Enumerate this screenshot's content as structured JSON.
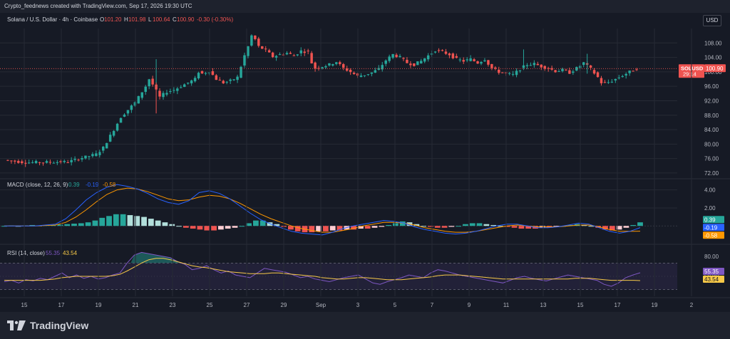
{
  "header": {
    "attribution": "Crypto_feednews created with TradingView.com, Sep 17, 2026 19:30 UTC"
  },
  "currency_button": "USD",
  "footer": {
    "brand": "TradingView"
  },
  "chart_data": [
    {
      "type": "candlestick",
      "title": "Solana / U.S. Dollar · 4h · Coinbase",
      "ohlc_readout": {
        "o_label": "O",
        "o": "101.20",
        "h_label": "H",
        "h": "101.98",
        "l_label": "L",
        "l": "100.64",
        "c_label": "C",
        "c": "100.90",
        "change": "-0.30 (-0.30%)"
      },
      "symbol_label": "SOLUSD",
      "last_price": "100.90",
      "countdown": "29:14",
      "y_ticks": [
        "108.00",
        "104.00",
        "100.00",
        "96.00",
        "92.00",
        "88.00",
        "84.00",
        "80.00",
        "76.00",
        "72.00"
      ],
      "ylim": [
        71,
        112
      ],
      "x_ticks": [
        "15",
        "17",
        "19",
        "21",
        "23",
        "25",
        "27",
        "29",
        "Sep",
        "3",
        "5",
        "7",
        "9",
        "11",
        "13",
        "15",
        "17",
        "19",
        "2"
      ],
      "close_path": [
        [
          0,
          75.6
        ],
        [
          6,
          74.9
        ],
        [
          12,
          75.0
        ],
        [
          18,
          75.1
        ],
        [
          22,
          76.2
        ],
        [
          26,
          77.2
        ],
        [
          28,
          79.0
        ],
        [
          31,
          84.0
        ],
        [
          33,
          87.5
        ],
        [
          35,
          89.5
        ],
        [
          37,
          91.5
        ],
        [
          39,
          94.5
        ],
        [
          40,
          96.0
        ],
        [
          41,
          98.0
        ],
        [
          42,
          96.5
        ],
        [
          44,
          93.0
        ],
        [
          46,
          94.5
        ],
        [
          48,
          95.0
        ],
        [
          50,
          96.0
        ],
        [
          52,
          97.0
        ],
        [
          54,
          98.0
        ],
        [
          55,
          100.0
        ],
        [
          56,
          99.5
        ],
        [
          58,
          100.2
        ],
        [
          60,
          98.0
        ],
        [
          62,
          97.0
        ],
        [
          64,
          97.5
        ],
        [
          66,
          98.5
        ],
        [
          67,
          101.5
        ],
        [
          68,
          104.5
        ],
        [
          69,
          107.0
        ],
        [
          70,
          110.0
        ],
        [
          71,
          109.0
        ],
        [
          72,
          107.0
        ],
        [
          74,
          106.0
        ],
        [
          76,
          104.2
        ],
        [
          78,
          104.8
        ],
        [
          80,
          105.2
        ],
        [
          82,
          104.5
        ],
        [
          84,
          105.8
        ],
        [
          86,
          105.5
        ],
        [
          87,
          102.5
        ],
        [
          88,
          101.0
        ],
        [
          90,
          101.5
        ],
        [
          92,
          102.0
        ],
        [
          94,
          102.8
        ],
        [
          96,
          101.0
        ],
        [
          98,
          100.0
        ],
        [
          100,
          98.8
        ],
        [
          102,
          99.2
        ],
        [
          104,
          99.8
        ],
        [
          106,
          100.8
        ],
        [
          108,
          103.2
        ],
        [
          110,
          104.8
        ],
        [
          112,
          104.0
        ],
        [
          114,
          102.5
        ],
        [
          116,
          102.0
        ],
        [
          118,
          103.0
        ],
        [
          120,
          104.5
        ],
        [
          122,
          106.0
        ],
        [
          124,
          105.5
        ],
        [
          126,
          104.8
        ],
        [
          128,
          103.5
        ],
        [
          130,
          103.0
        ],
        [
          132,
          103.5
        ],
        [
          134,
          102.5
        ],
        [
          136,
          103.5
        ],
        [
          138,
          101.0
        ],
        [
          140,
          100.0
        ],
        [
          142,
          99.5
        ],
        [
          144,
          99.2
        ],
        [
          146,
          100.8
        ],
        [
          148,
          102.0
        ],
        [
          150,
          102.2
        ],
        [
          152,
          101.5
        ],
        [
          154,
          101.0
        ],
        [
          156,
          100.2
        ],
        [
          158,
          100.5
        ],
        [
          160,
          99.8
        ],
        [
          162,
          101.0
        ],
        [
          164,
          102.5
        ],
        [
          166,
          100.8
        ],
        [
          168,
          98.5
        ],
        [
          169,
          97.0
        ],
        [
          170,
          96.8
        ],
        [
          172,
          97.5
        ],
        [
          174,
          98.5
        ],
        [
          176,
          99.5
        ],
        [
          178,
          100.5
        ],
        [
          179,
          100.9
        ]
      ],
      "wicks": [
        [
          43,
          95.5,
          103.5
        ],
        [
          43,
          88.5,
          97.0
        ],
        [
          147,
          100.5,
          106.2
        ],
        [
          165,
          99.5,
          105.0
        ]
      ]
    },
    {
      "type": "line",
      "title": "MACD (close, 12, 26, 9)",
      "values_readout": [
        "0.39",
        "-0.19",
        "-0.58"
      ],
      "y_ticks": [
        "4.00",
        "2.00"
      ],
      "ylim": [
        -1.8,
        5.0
      ],
      "badges": [
        "0.39",
        "-0.19",
        "-0.58"
      ],
      "histogram": [
        0.0,
        0.05,
        0.0,
        0.05,
        0.1,
        0.05,
        0.1,
        0.1,
        0.15,
        0.2,
        0.25,
        0.3,
        0.4,
        0.6,
        0.9,
        1.1,
        1.3,
        1.3,
        1.2,
        1.1,
        1.0,
        0.8,
        0.6,
        0.4,
        0.2,
        0.0,
        -0.2,
        -0.3,
        -0.4,
        -0.5,
        -0.5,
        -0.4,
        -0.3,
        -0.2,
        0.0,
        0.3,
        0.6,
        0.6,
        0.4,
        0.2,
        -0.1,
        -0.4,
        -0.6,
        -0.7,
        -0.7,
        -0.6,
        -0.6,
        -0.5,
        -0.5,
        -0.4,
        -0.4,
        -0.3,
        -0.3,
        -0.2,
        -0.1,
        0.1,
        0.3,
        0.5,
        0.4,
        0.2,
        0.0,
        -0.1,
        -0.2,
        -0.2,
        -0.1,
        0.0,
        0.2,
        0.3,
        0.3,
        0.2,
        0.1,
        0.0,
        -0.1,
        -0.2,
        -0.3,
        -0.3,
        -0.3,
        -0.2,
        -0.2,
        -0.1,
        0.0,
        0.1,
        0.2,
        0.1,
        0.0,
        -0.2,
        -0.4,
        -0.5,
        -0.4,
        -0.2,
        0.1,
        0.4
      ],
      "macd_line": [
        0.0,
        0.0,
        0.0,
        0.0,
        0.1,
        0.2,
        0.8,
        1.8,
        2.9,
        3.7,
        4.3,
        4.6,
        4.4,
        4.1,
        3.6,
        3.0,
        2.6,
        2.4,
        2.8,
        3.7,
        3.9,
        3.6,
        3.0,
        2.2,
        1.4,
        0.7,
        0.2,
        -0.2,
        -0.6,
        -0.8,
        -0.9,
        -1.0,
        -0.7,
        -0.3,
        0.0,
        0.2,
        0.4,
        0.6,
        0.5,
        0.3,
        -0.1,
        -0.4,
        -0.6,
        -0.8,
        -0.9,
        -0.8,
        -0.6,
        -0.3,
        0.0,
        0.2,
        0.2,
        0.0,
        -0.2,
        -0.2,
        -0.1,
        0.1,
        0.3,
        0.2,
        -0.2,
        -0.6,
        -0.8,
        -0.6,
        -0.19
      ],
      "signal_line": [
        0.0,
        0.0,
        0.0,
        0.0,
        0.05,
        0.1,
        0.4,
        1.0,
        1.8,
        2.7,
        3.5,
        4.0,
        4.2,
        4.1,
        3.8,
        3.4,
        3.0,
        2.8,
        2.9,
        3.2,
        3.4,
        3.3,
        3.0,
        2.5,
        1.9,
        1.3,
        0.8,
        0.4,
        0.0,
        -0.3,
        -0.5,
        -0.7,
        -0.7,
        -0.5,
        -0.3,
        0.0,
        0.2,
        0.4,
        0.4,
        0.3,
        0.1,
        -0.2,
        -0.4,
        -0.6,
        -0.7,
        -0.7,
        -0.6,
        -0.4,
        -0.2,
        0.0,
        0.1,
        0.0,
        -0.1,
        -0.1,
        -0.1,
        0.0,
        0.1,
        0.1,
        -0.1,
        -0.4,
        -0.6,
        -0.6,
        -0.58
      ]
    },
    {
      "type": "line",
      "title": "RSI (14, close)",
      "values_readout": [
        "55.35",
        "43.54"
      ],
      "y_ticks": [
        "80.00",
        "50.00"
      ],
      "ylim": [
        20,
        95
      ],
      "bands": [
        70,
        30
      ],
      "badges": [
        "55.35",
        "43.54"
      ],
      "rsi_line": [
        42,
        44,
        40,
        45,
        43,
        47,
        45,
        50,
        55,
        48,
        52,
        47,
        50,
        46,
        48,
        52,
        55,
        70,
        82,
        86,
        84,
        82,
        80,
        78,
        72,
        68,
        60,
        62,
        66,
        60,
        55,
        58,
        52,
        50,
        48,
        55,
        62,
        60,
        58,
        56,
        52,
        48,
        50,
        46,
        44,
        42,
        45,
        48,
        50,
        52,
        46,
        40,
        38,
        42,
        45,
        48,
        52,
        50,
        48,
        55,
        60,
        58,
        55,
        52,
        50,
        48,
        46,
        44,
        42,
        40,
        44,
        48,
        50,
        47,
        45,
        43,
        46,
        49,
        52,
        50,
        48,
        46,
        44,
        38,
        35,
        40,
        48,
        52,
        55.35
      ],
      "rsi_ma": [
        44,
        44,
        44,
        44,
        44,
        44,
        45,
        46,
        48,
        49,
        50,
        50,
        50,
        50,
        50,
        51,
        53,
        58,
        64,
        70,
        75,
        77,
        77,
        75,
        72,
        69,
        66,
        64,
        63,
        61,
        59,
        57,
        56,
        55,
        54,
        54,
        54,
        55,
        55,
        54,
        53,
        52,
        51,
        50,
        48,
        47,
        46,
        46,
        47,
        48,
        48,
        47,
        46,
        45,
        45,
        45,
        46,
        47,
        48,
        49,
        51,
        52,
        52,
        52,
        51,
        50,
        49,
        48,
        47,
        46,
        46,
        46,
        46,
        46,
        46,
        46,
        46,
        46,
        46,
        47,
        47,
        47,
        46,
        45,
        44,
        44,
        44,
        44,
        43.54
      ]
    }
  ]
}
